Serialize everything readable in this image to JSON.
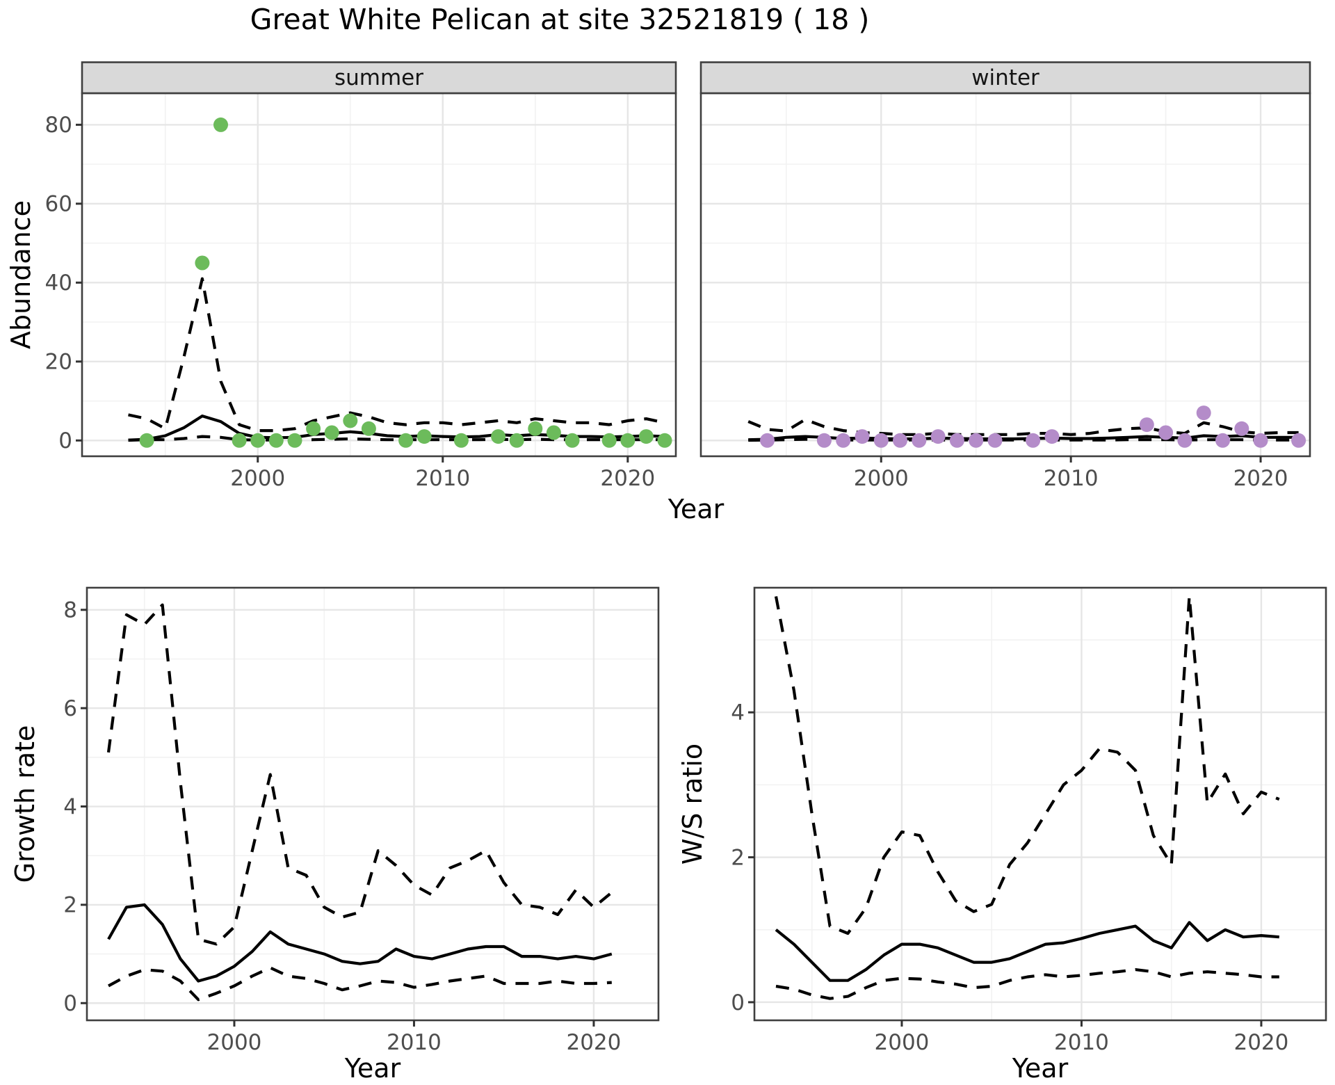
{
  "title": "Great White Pelican at site 32521819 ( 18 )",
  "colors": {
    "summer_point": "#6cbb5b",
    "winter_point": "#b48cc9",
    "line": "#000000",
    "strip_bg": "#d9d9d9",
    "strip_text": "#141414",
    "grid_major": "#e6e6e6",
    "grid_minor": "#f2f2f2",
    "axis_text": "#4d4d4d",
    "tick_mark": "#333333",
    "panel_border": "#3f3f3f",
    "panel_bg": "#ffffff"
  },
  "chart_data": [
    {
      "type": "scatter",
      "facet": "summer",
      "xlabel": "Year",
      "ylabel": "Abundance",
      "xlim": [
        1990.5,
        2022.6
      ],
      "ylim": [
        -4,
        88
      ],
      "xticks": [
        2000,
        2010,
        2020
      ],
      "xticks_minor": [
        1995,
        2005,
        2015
      ],
      "yticks": [
        0,
        20,
        40,
        60,
        80
      ],
      "yticks_minor": [
        10,
        30,
        50,
        70
      ],
      "grid": true,
      "legend": "none",
      "points": {
        "x": [
          1994,
          1997,
          1998,
          1999,
          2000,
          2001,
          2002,
          2003,
          2004,
          2005,
          2006,
          2008,
          2009,
          2011,
          2013,
          2014,
          2015,
          2016,
          2017,
          2019,
          2020,
          2021,
          2022
        ],
        "y": [
          0,
          45,
          80,
          0,
          0,
          0,
          0,
          3,
          2,
          5,
          3,
          0,
          1,
          0,
          1,
          0,
          3,
          2,
          0,
          0,
          0,
          1,
          0
        ]
      },
      "series": [
        {
          "name": "median",
          "style": "solid",
          "x": [
            1993,
            1994,
            1995,
            1996,
            1997,
            1998,
            1999,
            2000,
            2001,
            2002,
            2003,
            2004,
            2005,
            2006,
            2007,
            2008,
            2009,
            2010,
            2011,
            2012,
            2013,
            2014,
            2015,
            2016,
            2017,
            2018,
            2019,
            2020,
            2021,
            2022
          ],
          "y": [
            0.1,
            0.3,
            1.2,
            3.2,
            6.2,
            4.8,
            1.8,
            0.8,
            0.7,
            0.8,
            1.5,
            1.8,
            2.2,
            1.8,
            1.2,
            1.0,
            1.2,
            1.0,
            0.9,
            1.0,
            1.5,
            1.2,
            1.5,
            1.3,
            1.0,
            1.0,
            0.9,
            1.0,
            1.2,
            1.0
          ]
        },
        {
          "name": "upper_ci",
          "style": "dashed",
          "x": [
            1993,
            1994,
            1995,
            1996,
            1997,
            1998,
            1999,
            2000,
            2001,
            2002,
            2003,
            2004,
            2005,
            2006,
            2007,
            2008,
            2009,
            2010,
            2011,
            2012,
            2013,
            2014,
            2015,
            2016,
            2017,
            2018,
            2019,
            2020,
            2021,
            2022
          ],
          "y": [
            6.5,
            5.5,
            3.0,
            21,
            41,
            15,
            4,
            2.5,
            2.5,
            3,
            5,
            6,
            7,
            6,
            4.5,
            4,
            4.5,
            4.5,
            4,
            4.5,
            5,
            4.5,
            5.5,
            5,
            4.5,
            4.5,
            4,
            5,
            5.5,
            4.5
          ]
        },
        {
          "name": "lower_ci",
          "style": "dashed",
          "x": [
            1993,
            1994,
            1995,
            1996,
            1997,
            1998,
            1999,
            2000,
            2001,
            2002,
            2003,
            2004,
            2005,
            2006,
            2007,
            2008,
            2009,
            2010,
            2011,
            2012,
            2013,
            2014,
            2015,
            2016,
            2017,
            2018,
            2019,
            2020,
            2021,
            2022
          ],
          "y": [
            0.05,
            0.2,
            0.2,
            0.5,
            1.0,
            0.8,
            0.2,
            0.1,
            0.1,
            0.1,
            0.2,
            0.3,
            0.4,
            0.3,
            0.2,
            0.2,
            0.2,
            0.2,
            0.2,
            0.2,
            0.3,
            0.2,
            0.3,
            0.2,
            0.2,
            0.2,
            0.2,
            0.2,
            0.2,
            0.2
          ]
        }
      ]
    },
    {
      "type": "scatter",
      "facet": "winter",
      "xlabel": "Year",
      "ylabel": "Abundance",
      "xlim": [
        1990.5,
        2022.6
      ],
      "ylim": [
        -4,
        88
      ],
      "xticks": [
        2000,
        2010,
        2020
      ],
      "xticks_minor": [
        1995,
        2005,
        2015
      ],
      "yticks": [
        0,
        20,
        40,
        60,
        80
      ],
      "yticks_minor": [
        10,
        30,
        50,
        70
      ],
      "grid": true,
      "legend": "none",
      "points": {
        "x": [
          1994,
          1997,
          1998,
          1999,
          2000,
          2001,
          2002,
          2003,
          2004,
          2005,
          2006,
          2008,
          2009,
          2014,
          2015,
          2016,
          2017,
          2018,
          2019,
          2020,
          2022
        ],
        "y": [
          0,
          0,
          0,
          1,
          0,
          0,
          0,
          1,
          0,
          0,
          0,
          0,
          1,
          4,
          2,
          0,
          7,
          0,
          3,
          0,
          0
        ]
      },
      "series": [
        {
          "name": "median",
          "style": "solid",
          "x": [
            1993,
            1994,
            1995,
            1996,
            1997,
            1998,
            1999,
            2000,
            2001,
            2002,
            2003,
            2004,
            2005,
            2006,
            2007,
            2008,
            2009,
            2010,
            2011,
            2012,
            2013,
            2014,
            2015,
            2016,
            2017,
            2018,
            2019,
            2020,
            2021,
            2022
          ],
          "y": [
            0.2,
            0.3,
            0.8,
            1.0,
            0.8,
            0.5,
            0.6,
            0.5,
            0.4,
            0.4,
            0.6,
            0.5,
            0.4,
            0.4,
            0.4,
            0.5,
            0.6,
            0.5,
            0.5,
            0.6,
            0.8,
            1.0,
            0.8,
            0.6,
            1.2,
            1.0,
            1.2,
            0.8,
            0.8,
            0.8
          ]
        },
        {
          "name": "upper_ci",
          "style": "dashed",
          "x": [
            1993,
            1994,
            1995,
            1996,
            1997,
            1998,
            1999,
            2000,
            2001,
            2002,
            2003,
            2004,
            2005,
            2006,
            2007,
            2008,
            2009,
            2010,
            2011,
            2012,
            2013,
            2014,
            2015,
            2016,
            2017,
            2018,
            2019,
            2020,
            2021,
            2022
          ],
          "y": [
            4.8,
            2.8,
            2.4,
            5.3,
            3.5,
            2.5,
            2.0,
            1.8,
            1.5,
            1.5,
            1.8,
            1.5,
            1.5,
            1.5,
            1.5,
            1.8,
            1.8,
            1.5,
            1.8,
            2.5,
            3.0,
            3.2,
            2.2,
            1.8,
            4.5,
            3.5,
            2.2,
            1.8,
            2.0,
            2.0
          ]
        },
        {
          "name": "lower_ci",
          "style": "dashed",
          "x": [
            1993,
            1994,
            1995,
            1996,
            1997,
            1998,
            1999,
            2000,
            2001,
            2002,
            2003,
            2004,
            2005,
            2006,
            2007,
            2008,
            2009,
            2010,
            2011,
            2012,
            2013,
            2014,
            2015,
            2016,
            2017,
            2018,
            2019,
            2020,
            2021,
            2022
          ],
          "y": [
            0.05,
            0.1,
            0.2,
            0.3,
            0.2,
            0.1,
            0.1,
            0.1,
            0.1,
            0.1,
            0.1,
            0.1,
            0.1,
            0.1,
            0.1,
            0.1,
            0.1,
            0.1,
            0.1,
            0.1,
            0.2,
            0.2,
            0.2,
            0.1,
            0.2,
            0.2,
            0.2,
            0.1,
            0.1,
            0.1
          ]
        }
      ]
    },
    {
      "type": "line",
      "facet": "",
      "xlabel": "Year",
      "ylabel": "Growth rate",
      "xlim": [
        1991.8,
        2023.6
      ],
      "ylim": [
        -0.35,
        8.45
      ],
      "xticks": [
        2000,
        2010,
        2020
      ],
      "xticks_minor": [
        1995,
        2005,
        2015
      ],
      "yticks": [
        0,
        2,
        4,
        6,
        8
      ],
      "yticks_minor": [
        1,
        3,
        5,
        7
      ],
      "grid": true,
      "legend": "none",
      "series": [
        {
          "name": "median",
          "style": "solid",
          "x": [
            1993,
            1994,
            1995,
            1996,
            1997,
            1998,
            1999,
            2000,
            2001,
            2002,
            2003,
            2004,
            2005,
            2006,
            2007,
            2008,
            2009,
            2010,
            2011,
            2012,
            2013,
            2014,
            2015,
            2016,
            2017,
            2018,
            2019,
            2020,
            2021
          ],
          "y": [
            1.3,
            1.95,
            2.0,
            1.6,
            0.9,
            0.45,
            0.55,
            0.75,
            1.05,
            1.45,
            1.2,
            1.1,
            1.0,
            0.85,
            0.8,
            0.85,
            1.1,
            0.95,
            0.9,
            1.0,
            1.1,
            1.15,
            1.15,
            0.95,
            0.95,
            0.9,
            0.95,
            0.9,
            1.0
          ]
        },
        {
          "name": "upper_ci",
          "style": "dashed",
          "x": [
            1993,
            1994,
            1995,
            1996,
            1997,
            1998,
            1999,
            2000,
            2001,
            2002,
            2003,
            2004,
            2005,
            2006,
            2007,
            2008,
            2009,
            2010,
            2011,
            2012,
            2013,
            2014,
            2015,
            2016,
            2017,
            2018,
            2019,
            2020,
            2021
          ],
          "y": [
            5.1,
            7.9,
            7.7,
            8.1,
            4.5,
            1.3,
            1.2,
            1.55,
            3.1,
            4.65,
            2.75,
            2.6,
            1.95,
            1.75,
            1.85,
            3.1,
            2.8,
            2.4,
            2.2,
            2.75,
            2.9,
            3.1,
            2.45,
            2.0,
            1.95,
            1.8,
            2.3,
            1.95,
            2.25
          ]
        },
        {
          "name": "lower_ci",
          "style": "dashed",
          "x": [
            1993,
            1994,
            1995,
            1996,
            1997,
            1998,
            1999,
            2000,
            2001,
            2002,
            2003,
            2004,
            2005,
            2006,
            2007,
            2008,
            2009,
            2010,
            2011,
            2012,
            2013,
            2014,
            2015,
            2016,
            2017,
            2018,
            2019,
            2020,
            2021
          ],
          "y": [
            0.35,
            0.55,
            0.68,
            0.65,
            0.45,
            0.07,
            0.2,
            0.35,
            0.55,
            0.72,
            0.55,
            0.5,
            0.4,
            0.27,
            0.35,
            0.45,
            0.42,
            0.32,
            0.38,
            0.45,
            0.5,
            0.55,
            0.4,
            0.4,
            0.4,
            0.45,
            0.4,
            0.4,
            0.42
          ]
        }
      ]
    },
    {
      "type": "line",
      "facet": "",
      "xlabel": "Year",
      "ylabel": "W/S ratio",
      "xlim": [
        1991.8,
        2023.6
      ],
      "ylim": [
        -0.25,
        5.72
      ],
      "xticks": [
        2000,
        2010,
        2020
      ],
      "xticks_minor": [
        1995,
        2005,
        2015
      ],
      "yticks": [
        0,
        2,
        4
      ],
      "yticks_minor": [
        1,
        3,
        5
      ],
      "grid": true,
      "legend": "none",
      "series": [
        {
          "name": "median",
          "style": "solid",
          "x": [
            1993,
            1994,
            1995,
            1996,
            1997,
            1998,
            1999,
            2000,
            2001,
            2002,
            2003,
            2004,
            2005,
            2006,
            2007,
            2008,
            2009,
            2010,
            2011,
            2012,
            2013,
            2014,
            2015,
            2016,
            2017,
            2018,
            2019,
            2020,
            2021
          ],
          "y": [
            1.0,
            0.8,
            0.55,
            0.3,
            0.3,
            0.45,
            0.65,
            0.8,
            0.8,
            0.75,
            0.65,
            0.55,
            0.55,
            0.6,
            0.7,
            0.8,
            0.82,
            0.88,
            0.95,
            1.0,
            1.05,
            0.85,
            0.75,
            1.1,
            0.85,
            1.0,
            0.9,
            0.92,
            0.9
          ]
        },
        {
          "name": "upper_ci",
          "style": "dashed",
          "x": [
            1993,
            1994,
            1995,
            1996,
            1997,
            1998,
            1999,
            2000,
            2001,
            2002,
            2003,
            2004,
            2005,
            2006,
            2007,
            2008,
            2009,
            2010,
            2011,
            2012,
            2013,
            2014,
            2015,
            2016,
            2017,
            2018,
            2019,
            2020,
            2021
          ],
          "y": [
            5.6,
            4.3,
            2.6,
            1.05,
            0.95,
            1.3,
            2.0,
            2.35,
            2.3,
            1.8,
            1.4,
            1.25,
            1.35,
            1.9,
            2.2,
            2.6,
            3.0,
            3.2,
            3.5,
            3.45,
            3.2,
            2.3,
            1.9,
            5.6,
            2.75,
            3.15,
            2.6,
            2.9,
            2.8
          ]
        },
        {
          "name": "lower_ci",
          "style": "dashed",
          "x": [
            1993,
            1994,
            1995,
            1996,
            1997,
            1998,
            1999,
            2000,
            2001,
            2002,
            2003,
            2004,
            2005,
            2006,
            2007,
            2008,
            2009,
            2010,
            2011,
            2012,
            2013,
            2014,
            2015,
            2016,
            2017,
            2018,
            2019,
            2020,
            2021
          ],
          "y": [
            0.22,
            0.18,
            0.1,
            0.05,
            0.08,
            0.2,
            0.3,
            0.33,
            0.32,
            0.28,
            0.25,
            0.2,
            0.22,
            0.3,
            0.35,
            0.38,
            0.35,
            0.37,
            0.4,
            0.42,
            0.45,
            0.42,
            0.35,
            0.4,
            0.42,
            0.4,
            0.38,
            0.35,
            0.35
          ]
        }
      ]
    }
  ]
}
